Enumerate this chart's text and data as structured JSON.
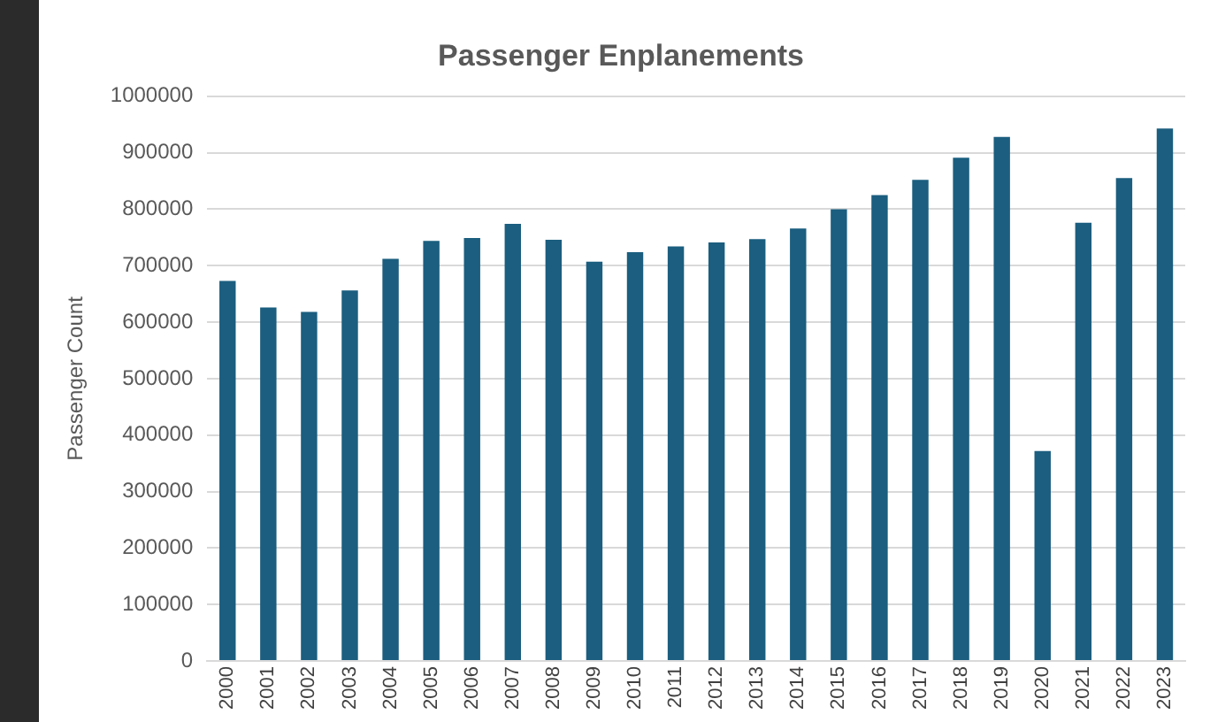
{
  "chart_data": {
    "type": "bar",
    "title": "Passenger Enplanements",
    "ylabel": "Passenger Count",
    "categories": [
      "2000",
      "2001",
      "2002",
      "2003",
      "2004",
      "2005",
      "2006",
      "2007",
      "2008",
      "2009",
      "2010",
      "2011",
      "2012",
      "2013",
      "2014",
      "2015",
      "2016",
      "2017",
      "2018",
      "2019",
      "2020",
      "2021",
      "2022",
      "2023"
    ],
    "values": [
      673000,
      626000,
      618000,
      656000,
      712000,
      744000,
      749000,
      774000,
      746000,
      707000,
      724000,
      734000,
      741000,
      747000,
      766000,
      800000,
      825000,
      852000,
      891000,
      928000,
      372000,
      776000,
      855000,
      943000
    ],
    "color": "#1b5e7f",
    "ylim": [
      0,
      1000000
    ],
    "yticks": [
      0,
      100000,
      200000,
      300000,
      400000,
      500000,
      600000,
      700000,
      800000,
      900000,
      1000000
    ],
    "grid": "y",
    "legend": false
  }
}
